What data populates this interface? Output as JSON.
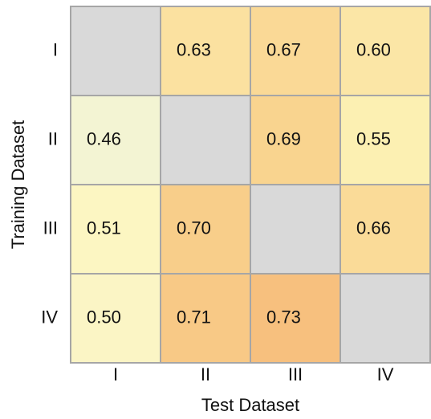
{
  "chart_data": {
    "type": "heatmap",
    "xlabel": "Test Dataset",
    "ylabel": "Training Dataset",
    "x_categories": [
      "I",
      "II",
      "III",
      "IV"
    ],
    "y_categories": [
      "I",
      "II",
      "III",
      "IV"
    ],
    "values": [
      [
        null,
        0.63,
        0.67,
        0.6
      ],
      [
        0.46,
        null,
        0.69,
        0.55
      ],
      [
        0.51,
        0.7,
        null,
        0.66
      ],
      [
        0.5,
        0.71,
        0.73,
        null
      ]
    ],
    "value_labels": [
      [
        null,
        "0.63",
        "0.67",
        "0.60"
      ],
      [
        "0.46",
        null,
        "0.69",
        "0.55"
      ],
      [
        "0.51",
        "0.70",
        null,
        "0.66"
      ],
      [
        "0.50",
        "0.71",
        "0.73",
        null
      ]
    ],
    "colors": [
      [
        "#d9d9d9",
        "#fbe1a0",
        "#fad996",
        "#fbe6a6"
      ],
      [
        "#f3f4d3",
        "#d9d9d9",
        "#f9d48f",
        "#fcf0b2"
      ],
      [
        "#fcf6c2",
        "#f8ce8a",
        "#d9d9d9",
        "#fadb98"
      ],
      [
        "#fbf5c5",
        "#f8c986",
        "#f7c07e",
        "#d9d9d9"
      ]
    ]
  }
}
